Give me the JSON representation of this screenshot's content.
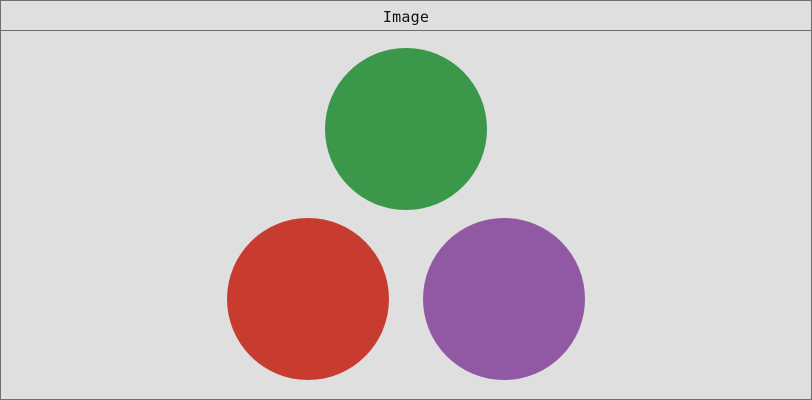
{
  "window": {
    "title": "Image"
  },
  "image": {
    "shapes": [
      {
        "name": "green-circle",
        "color": "#3b984a"
      },
      {
        "name": "red-circle",
        "color": "#c83c30"
      },
      {
        "name": "purple-circle",
        "color": "#9159a3"
      }
    ]
  }
}
